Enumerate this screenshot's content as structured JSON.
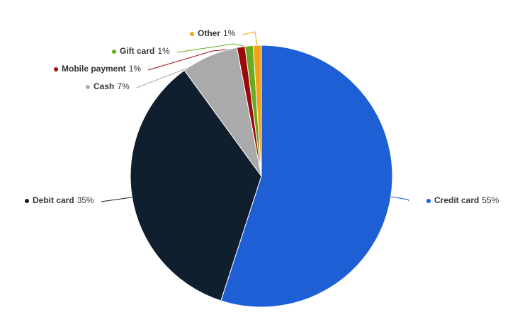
{
  "chart_data": {
    "type": "pie",
    "categories": [
      "Credit card",
      "Debit card",
      "Cash",
      "Mobile payment",
      "Gift card",
      "Other"
    ],
    "values": [
      55,
      35,
      7,
      1,
      1,
      1
    ],
    "value_labels": [
      "55%",
      "35%",
      "7%",
      "1%",
      "1%",
      "1%"
    ],
    "colors": [
      "#1f5fd6",
      "#0f1f2e",
      "#aaaaaa",
      "#9b0a0a",
      "#6aaa1e",
      "#f0a21a"
    ]
  }
}
